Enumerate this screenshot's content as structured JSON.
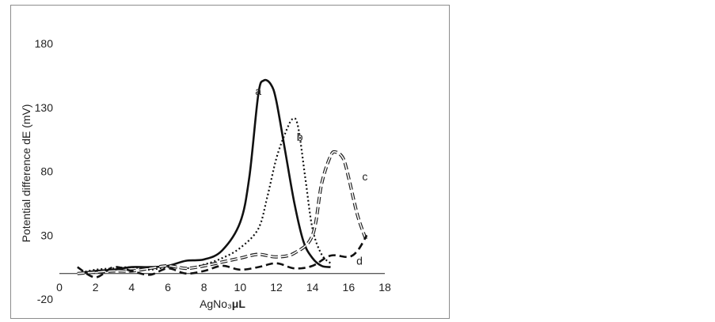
{
  "chart_data": {
    "type": "line",
    "xlabel": "AgNo₃",
    "xlabel_unit": "μL",
    "ylabel": "Potential difference dE (mV)",
    "xlim": [
      0,
      18
    ],
    "ylim": [
      -20,
      180
    ],
    "x_ticks": [
      "0",
      "2",
      "4",
      "6",
      "8",
      "10",
      "12",
      "14",
      "16",
      "18"
    ],
    "y_ticks": [
      "180",
      "130",
      "80",
      "30",
      "-20"
    ],
    "x_tick_values": [
      0,
      2,
      4,
      6,
      8,
      10,
      12,
      14,
      16,
      18
    ],
    "y_tick_values": [
      180,
      130,
      80,
      30,
      -20
    ],
    "grid": false,
    "legend": "none",
    "series": [
      {
        "label": "a",
        "style": "solid",
        "points": [
          [
            1,
            0
          ],
          [
            2,
            2
          ],
          [
            3,
            3
          ],
          [
            4,
            5
          ],
          [
            5,
            5
          ],
          [
            6,
            6
          ],
          [
            7,
            10
          ],
          [
            8,
            11
          ],
          [
            9,
            18
          ],
          [
            10,
            40
          ],
          [
            10.5,
            75
          ],
          [
            11,
            140
          ],
          [
            11.3,
            151
          ],
          [
            11.7,
            148
          ],
          [
            12,
            135
          ],
          [
            12.5,
            95
          ],
          [
            13,
            55
          ],
          [
            13.5,
            25
          ],
          [
            14,
            12
          ],
          [
            14.5,
            6
          ],
          [
            15,
            5
          ]
        ]
      },
      {
        "label": "b",
        "style": "dotted",
        "points": [
          [
            1,
            0
          ],
          [
            2,
            3
          ],
          [
            3,
            4
          ],
          [
            4,
            5
          ],
          [
            5,
            3
          ],
          [
            6,
            5
          ],
          [
            7,
            4
          ],
          [
            8,
            7
          ],
          [
            9,
            12
          ],
          [
            10,
            20
          ],
          [
            11,
            35
          ],
          [
            11.5,
            60
          ],
          [
            12,
            90
          ],
          [
            12.5,
            110
          ],
          [
            12.9,
            121
          ],
          [
            13.2,
            115
          ],
          [
            13.6,
            75
          ],
          [
            14,
            35
          ],
          [
            14.5,
            15
          ],
          [
            15,
            8
          ]
        ]
      },
      {
        "label": "c",
        "style": "double",
        "points": [
          [
            1,
            0
          ],
          [
            2,
            1
          ],
          [
            3,
            2
          ],
          [
            4,
            2
          ],
          [
            5,
            4
          ],
          [
            6,
            6
          ],
          [
            7,
            4
          ],
          [
            8,
            6
          ],
          [
            9,
            9
          ],
          [
            10,
            12
          ],
          [
            11,
            15
          ],
          [
            12,
            13
          ],
          [
            13,
            16
          ],
          [
            14,
            30
          ],
          [
            14.5,
            70
          ],
          [
            15,
            92
          ],
          [
            15.3,
            95
          ],
          [
            15.7,
            90
          ],
          [
            16,
            75
          ],
          [
            16.5,
            45
          ],
          [
            17,
            25
          ]
        ]
      },
      {
        "label": "d",
        "style": "dashed",
        "points": [
          [
            1,
            5
          ],
          [
            2,
            -3
          ],
          [
            3,
            5
          ],
          [
            4,
            2
          ],
          [
            5,
            -1
          ],
          [
            6,
            4
          ],
          [
            7,
            0
          ],
          [
            8,
            2
          ],
          [
            9,
            6
          ],
          [
            10,
            3
          ],
          [
            11,
            5
          ],
          [
            12,
            8
          ],
          [
            13,
            4
          ],
          [
            14,
            6
          ],
          [
            15,
            14
          ],
          [
            16,
            13
          ],
          [
            16.5,
            18
          ],
          [
            17,
            30
          ]
        ]
      }
    ]
  }
}
